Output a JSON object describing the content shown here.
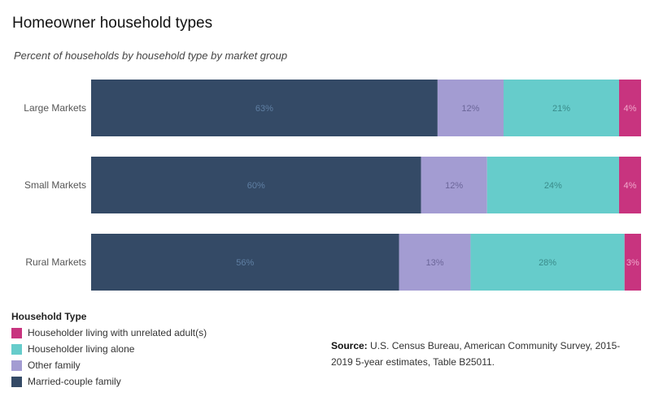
{
  "header": {
    "title": "Homeowner household types",
    "subtitle": "Percent of households by household type by market group"
  },
  "legend": {
    "title": "Household Type",
    "items": [
      {
        "label": "Householder living with unrelated adult(s)",
        "color": "#c8347f"
      },
      {
        "label": "Householder living alone",
        "color": "#66cccb"
      },
      {
        "label": "Other family",
        "color": "#a39cd2"
      },
      {
        "label": "Married-couple family",
        "color": "#344a66"
      }
    ]
  },
  "source": {
    "label": "Source:",
    "text": " U.S. Census Bureau, American Community Survey, 2015-2019 5-year estimates, Table B25011."
  },
  "chart_data": {
    "type": "bar",
    "orientation": "horizontal",
    "stacked": true,
    "categories": [
      "Large Markets",
      "Small Markets",
      "Rural Markets"
    ],
    "series": [
      {
        "name": "Married-couple family",
        "values": [
          63,
          60,
          56
        ],
        "color": "#344a66",
        "label_color": "#5f7fa3"
      },
      {
        "name": "Other family",
        "values": [
          12,
          12,
          13
        ],
        "color": "#a39cd2",
        "label_color": "#6b6699"
      },
      {
        "name": "Householder living alone",
        "values": [
          21,
          24,
          28
        ],
        "color": "#66cccb",
        "label_color": "#3a8b8a"
      },
      {
        "name": "Householder living with unrelated adult(s)",
        "values": [
          4,
          4,
          3
        ],
        "color": "#c8347f",
        "label_color": "#f0a8cc"
      }
    ],
    "data_labels": [
      [
        "63%",
        "12%",
        "21%",
        "4%"
      ],
      [
        "60%",
        "12%",
        "24%",
        "4%"
      ],
      [
        "56%",
        "13%",
        "28%",
        "3%"
      ]
    ],
    "xlim": [
      0,
      100
    ],
    "grid": false
  }
}
